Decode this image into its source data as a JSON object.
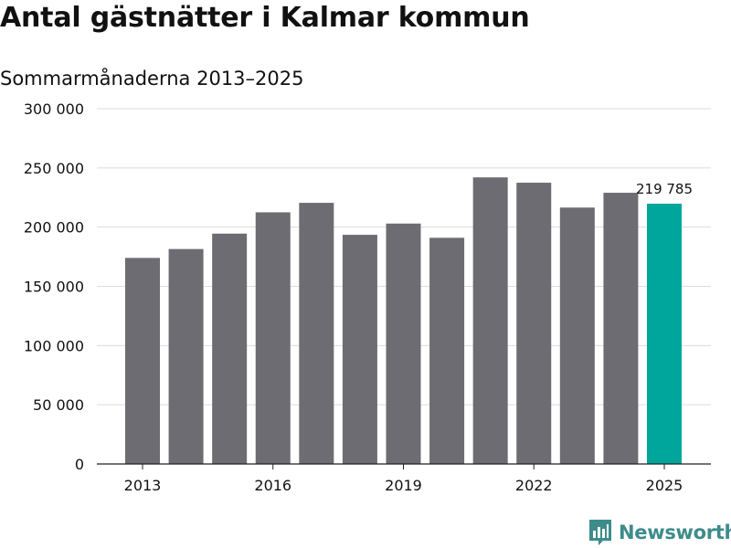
{
  "title": "Antal gästnätter i Kalmar kommun",
  "subtitle": "Sommarmånaderna 2013–2025",
  "colors": {
    "bar": "#6d6c72",
    "highlight": "#00a69b",
    "grid": "#dcdcdc",
    "axis": "#222222",
    "text": "#111111",
    "logo": "#3d8c8a"
  },
  "chart_data": {
    "type": "bar",
    "title": "Antal gästnätter i Kalmar kommun",
    "subtitle": "Sommarmånaderna 2013–2025",
    "categories": [
      "2013",
      "2014",
      "2015",
      "2016",
      "2017",
      "2018",
      "2019",
      "2020",
      "2021",
      "2022",
      "2023",
      "2024",
      "2025"
    ],
    "values": [
      174000,
      181500,
      194500,
      212500,
      220500,
      193500,
      203000,
      191000,
      242000,
      237500,
      216500,
      229000,
      219785
    ],
    "highlight_index": 12,
    "data_labels": [
      {
        "index": 12,
        "text": "219 785"
      }
    ],
    "ylim": [
      0,
      300000
    ],
    "yticks": [
      0,
      50000,
      100000,
      150000,
      200000,
      250000,
      300000
    ],
    "ytick_labels": [
      "0",
      "50 000",
      "100 000",
      "150 000",
      "200 000",
      "250 000",
      "300 000"
    ],
    "xtick_labels": [
      "2013",
      "2016",
      "2019",
      "2022",
      "2025"
    ],
    "xlabel": "",
    "ylabel": "",
    "grid": true,
    "legend": "none"
  },
  "brand": {
    "name": "Newsworthy",
    "icon": "newsworthy-logo-icon"
  }
}
